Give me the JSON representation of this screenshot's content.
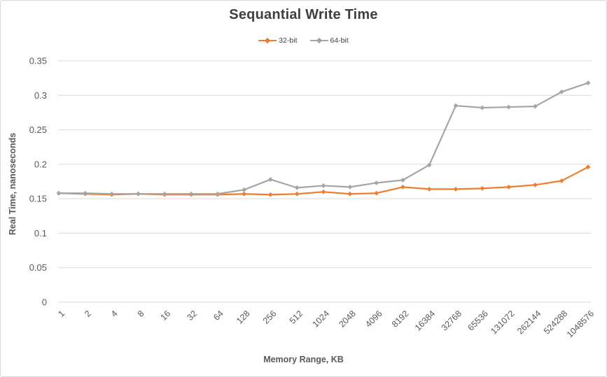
{
  "frame": {
    "background": "#FFFFFF",
    "border_color": "#D9D9D9"
  },
  "chart_data": {
    "type": "line",
    "title": "Sequantial Write Time",
    "xlabel": "Memory Range, KB",
    "ylabel": "Real Time, nanoseconds",
    "legend_position": "top",
    "grid": "horizontal-only",
    "ylim": [
      0,
      0.35
    ],
    "yticks": [
      0,
      0.05,
      0.1,
      0.15,
      0.2,
      0.25,
      0.3,
      0.35
    ],
    "ytick_labels": [
      "0",
      "0.05",
      "0.1",
      "0.15",
      "0.2",
      "0.25",
      "0.3",
      "0.35"
    ],
    "categories": [
      "1",
      "2",
      "4",
      "8",
      "16",
      "32",
      "64",
      "128",
      "256",
      "512",
      "1024",
      "2048",
      "4096",
      "8192",
      "16384",
      "32768",
      "65536",
      "131072",
      "262144",
      "524288",
      "1048576"
    ],
    "series": [
      {
        "name": "32-bit",
        "color": "#ED7D31",
        "marker": "diamond",
        "values": [
          0.158,
          0.157,
          0.156,
          0.157,
          0.156,
          0.156,
          0.156,
          0.157,
          0.156,
          0.157,
          0.16,
          0.157,
          0.158,
          0.167,
          0.164,
          0.164,
          0.165,
          0.167,
          0.17,
          0.176,
          0.196
        ]
      },
      {
        "name": "64-bit",
        "color": "#A5A5A5",
        "marker": "diamond",
        "values": [
          0.158,
          0.158,
          0.157,
          0.157,
          0.157,
          0.157,
          0.157,
          0.163,
          0.178,
          0.166,
          0.169,
          0.167,
          0.173,
          0.177,
          0.199,
          0.285,
          0.282,
          0.283,
          0.284,
          0.305,
          0.318
        ]
      }
    ],
    "colors": {
      "gridline": "#D9D9D9",
      "axis_text": "#595959",
      "title_text": "#404040",
      "legend_text": "#404040"
    }
  }
}
